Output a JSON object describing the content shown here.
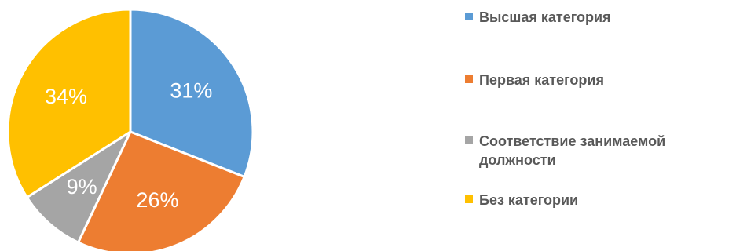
{
  "chart_data": {
    "type": "pie",
    "slices": [
      {
        "name": "Высшая категория",
        "value": 31,
        "label": "31%",
        "color": "#5B9BD5"
      },
      {
        "name": "Первая категория",
        "value": 26,
        "label": "26%",
        "color": "#ED7D31"
      },
      {
        "name": "Соответствие занимаемой должности",
        "value": 9,
        "label": "9%",
        "color": "#A5A5A5"
      },
      {
        "name": "Без категории",
        "value": 34,
        "label": "34%",
        "color": "#FFC000"
      }
    ],
    "legend_position": "right"
  }
}
